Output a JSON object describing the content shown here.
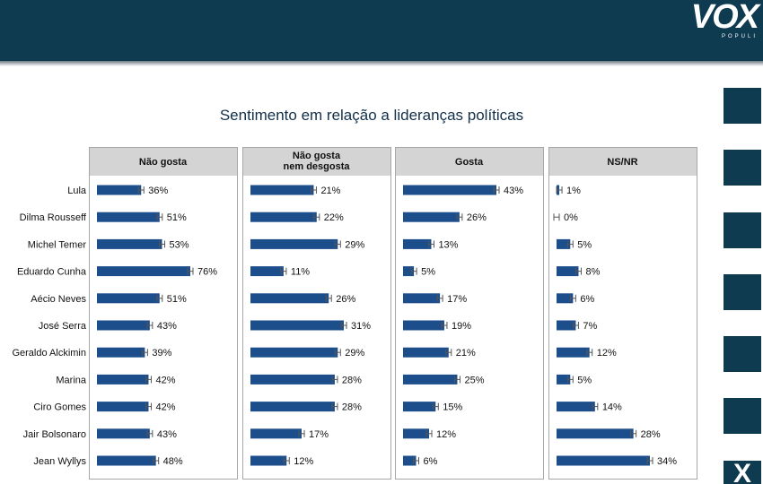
{
  "brand": {
    "name": "VOX",
    "subtitle": "POPULI",
    "tile_glyph": "X"
  },
  "chart_data": {
    "type": "bar",
    "title": "Sentimento em relação a lideranças políticas",
    "categories": [
      "Lula",
      "Dilma Rousseff",
      "Michel Temer",
      "Eduardo Cunha",
      "Aécio Neves",
      "José Serra",
      "Geraldo Alckimin",
      "Marina",
      "Ciro Gomes",
      "Jair Bolsonaro",
      "Jean Wyllys"
    ],
    "panels": [
      {
        "header": [
          "Não gosta"
        ],
        "values": [
          36,
          51,
          53,
          76,
          51,
          43,
          39,
          42,
          42,
          43,
          48
        ],
        "scale_max": 76
      },
      {
        "header": [
          "Não gosta",
          "nem desgosta"
        ],
        "values": [
          21,
          22,
          29,
          11,
          26,
          31,
          29,
          28,
          28,
          17,
          12
        ],
        "scale_max": 31
      },
      {
        "header": [
          "Gosta"
        ],
        "values": [
          43,
          26,
          13,
          5,
          17,
          19,
          21,
          25,
          15,
          12,
          6
        ],
        "scale_max": 43
      },
      {
        "header": [
          "NS/NR"
        ],
        "values": [
          1,
          0,
          5,
          8,
          6,
          7,
          12,
          5,
          14,
          28,
          34
        ],
        "scale_max": 34
      }
    ],
    "value_suffix": "%",
    "error_bars": true,
    "colors": {
      "bar": "#1c4e8c",
      "header_bg": "#d4d4d4",
      "panel_border": "#a7a7a7",
      "title": "#12304a"
    }
  }
}
